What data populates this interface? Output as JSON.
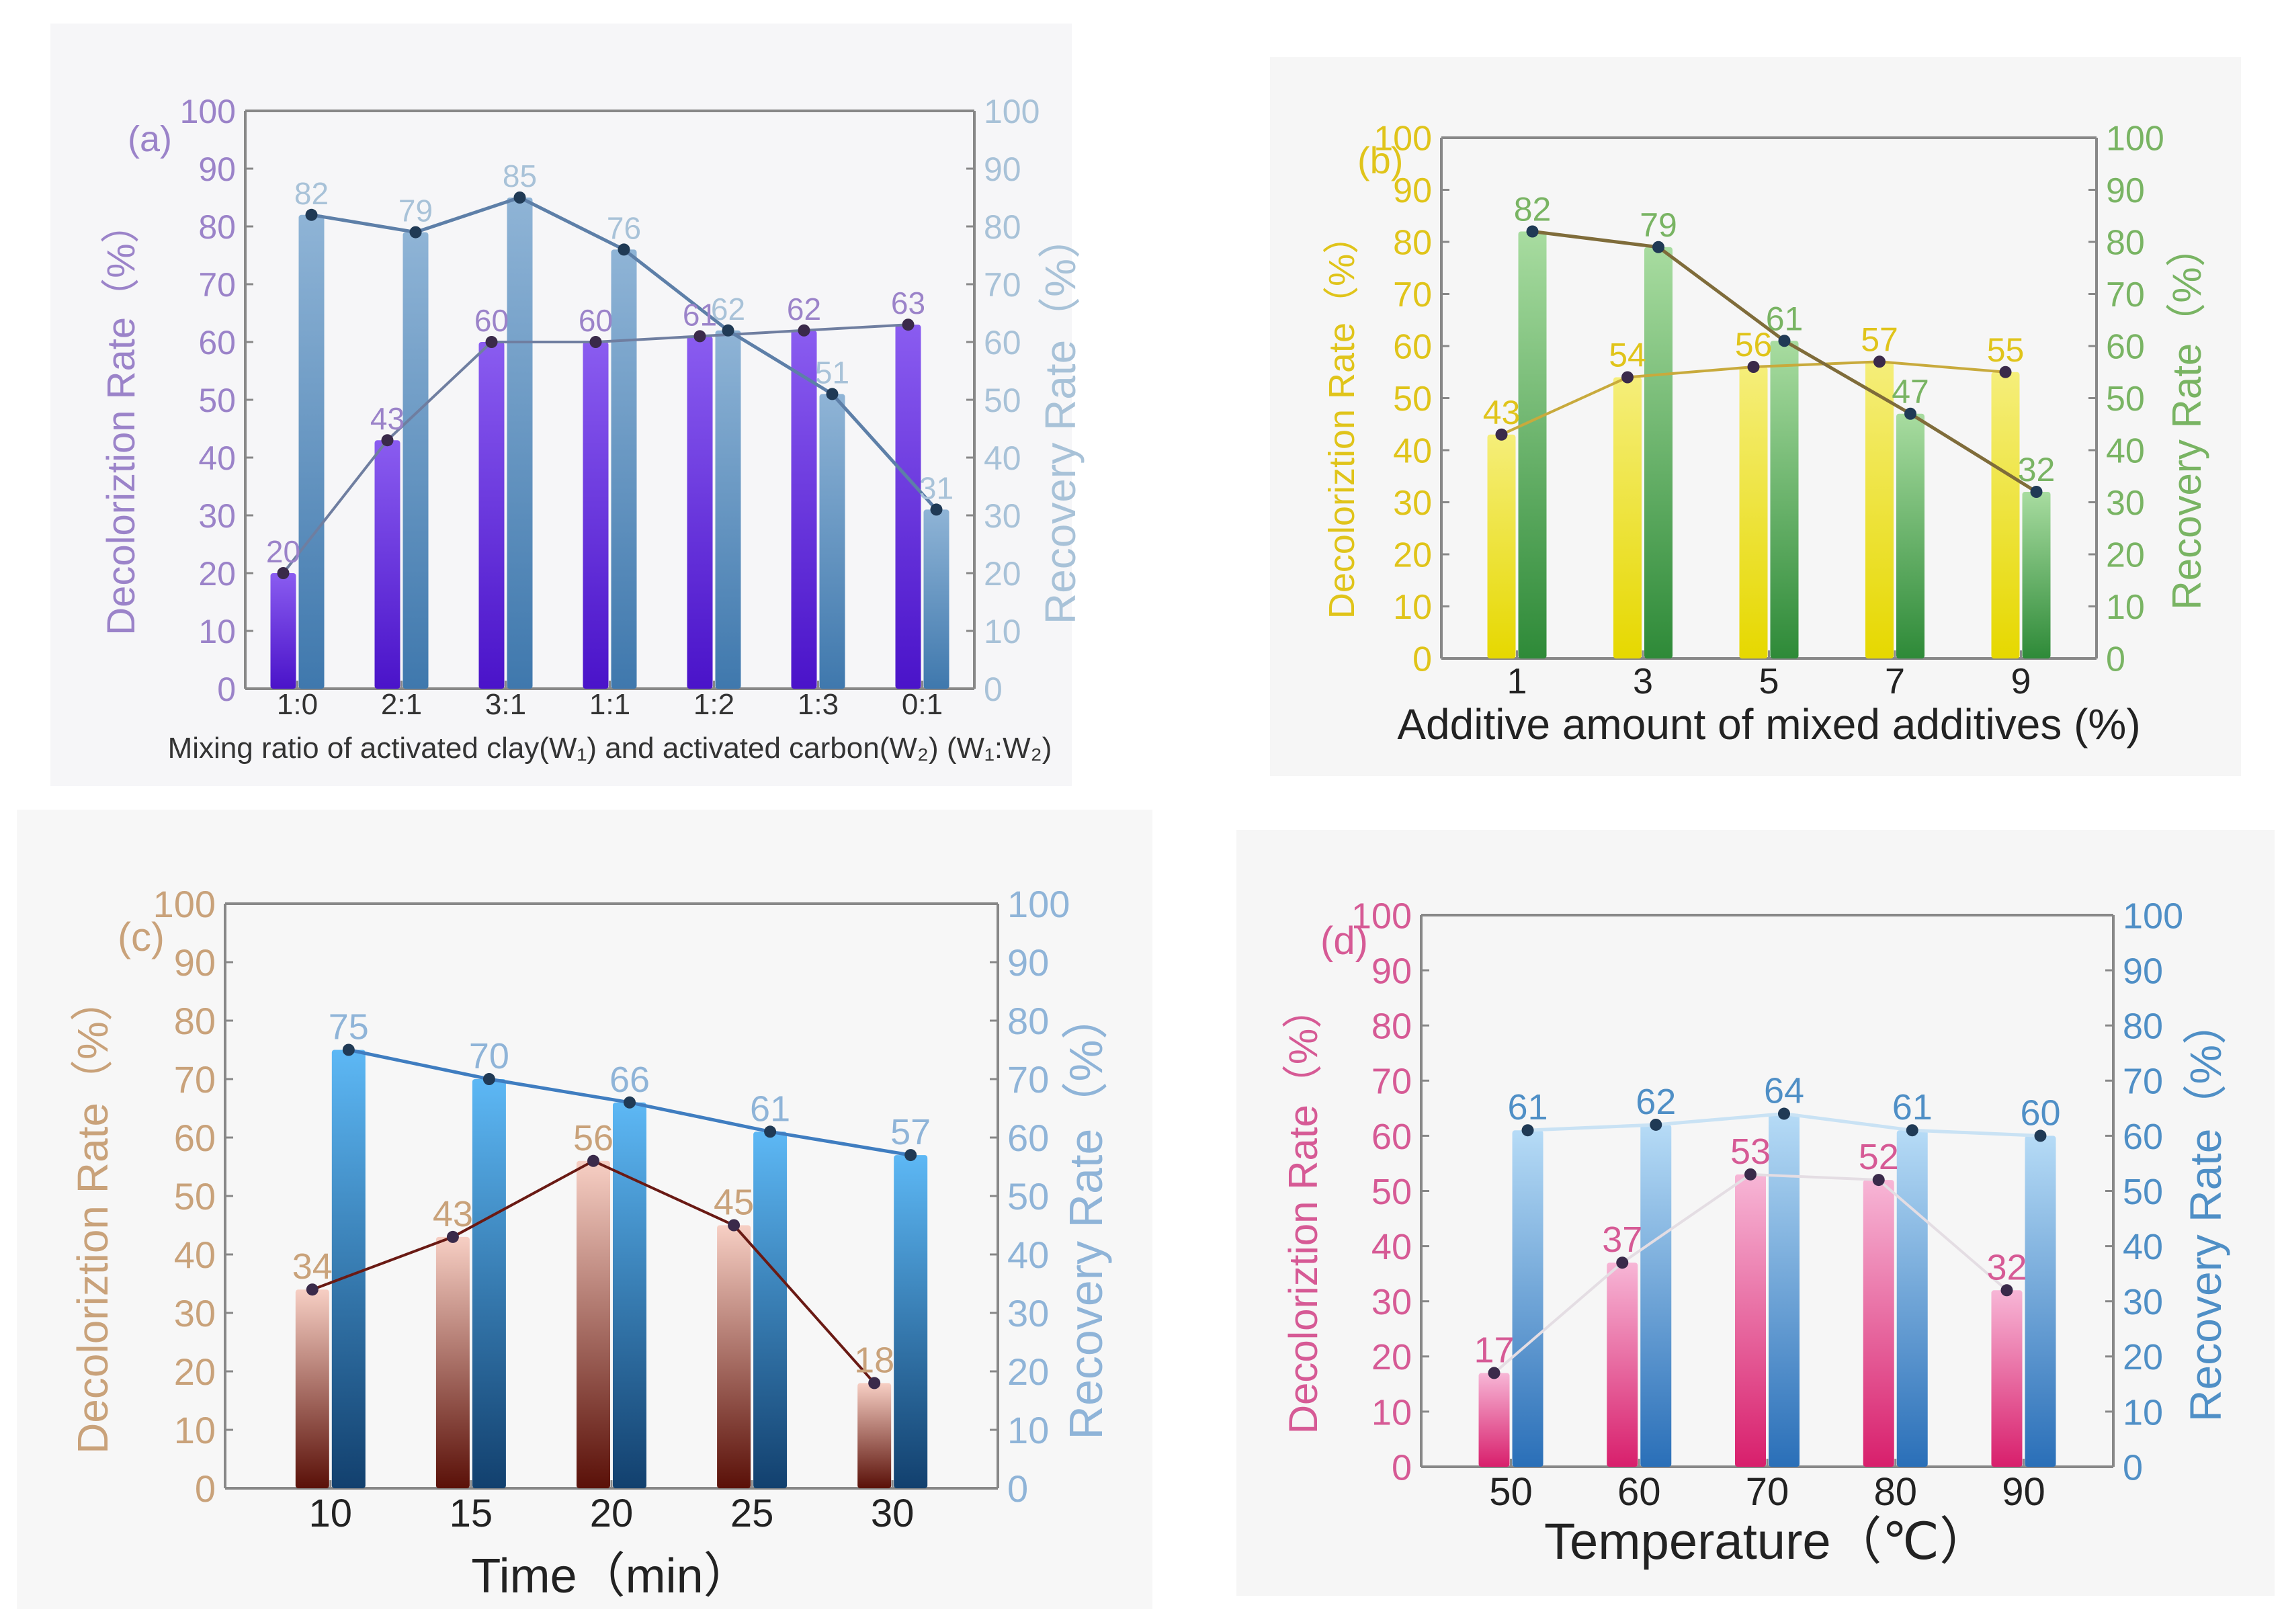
{
  "chart_data": [
    {
      "type": "bar",
      "panel_label": "(a)",
      "categories": [
        "1:0",
        "2:1",
        "3:1",
        "1:1",
        "1:2",
        "1:3",
        "0:1"
      ],
      "series": [
        {
          "name": "Decoloriztion Rate (%)",
          "axis": "left",
          "values": [
            20,
            43,
            60,
            60,
            61,
            62,
            63
          ],
          "labels": [
            "20",
            "43",
            "60",
            "60",
            "61",
            "62",
            "63"
          ]
        },
        {
          "name": "Recovery Rate (%)",
          "axis": "right",
          "values": [
            82,
            79,
            85,
            76,
            62,
            51,
            31
          ],
          "labels": [
            "82",
            "79",
            "85",
            "76",
            "62",
            "51",
            "31"
          ]
        }
      ],
      "xlabel": "Mixing ratio of activated clay(W₁) and activated carbon(W₂) (W₁:W₂)",
      "ylabel_left": "Decoloriztion Rate（%）",
      "ylabel_right": "Recovery Rate（%）",
      "ylim": [
        0,
        100
      ],
      "yticks": [
        "0",
        "10",
        "20",
        "30",
        "40",
        "50",
        "60",
        "70",
        "80",
        "90",
        "100"
      ],
      "colors": {
        "left": "#8a5cf0",
        "left_dark": "#4a13c9",
        "right": "#8fb4d6",
        "right_dark": "#3f78ad",
        "left_axis": "#9b83c9",
        "right_axis": "#a8c2d8",
        "line": "#5d7fa8",
        "left_line": "#6f7ea0",
        "bg": "#f6f6f8",
        "xlabel": "#333333"
      }
    },
    {
      "type": "bar",
      "panel_label": "(b)",
      "categories": [
        "1",
        "3",
        "5",
        "7",
        "9"
      ],
      "series": [
        {
          "name": "Decoloriztion Rate (%)",
          "axis": "left",
          "values": [
            43,
            54,
            56,
            57,
            55
          ],
          "labels": [
            "43",
            "54",
            "56",
            "57",
            "55"
          ]
        },
        {
          "name": "Recovery Rate (%)",
          "axis": "right",
          "values": [
            82,
            79,
            61,
            47,
            32
          ],
          "labels": [
            "82",
            "79",
            "61",
            "47",
            "32"
          ]
        }
      ],
      "xlabel": "Additive amount of mixed additives (%)",
      "ylabel_left": "Decoloriztion Rate（%）",
      "ylabel_right": "Recovery Rate（%）",
      "ylim": [
        0,
        100
      ],
      "yticks": [
        "0",
        "10",
        "20",
        "30",
        "40",
        "50",
        "60",
        "70",
        "80",
        "90",
        "100"
      ],
      "colors": {
        "left": "#f5ee7a",
        "left_dark": "#e6d800",
        "right": "#a8dca0",
        "right_dark": "#2e8a38",
        "left_axis": "#e0c41a",
        "right_axis": "#79b463",
        "line": "#7f6c3a",
        "left_line": "#c8aa3c",
        "bg": "#f6f6f6",
        "xlabel": "#222222"
      }
    },
    {
      "type": "bar",
      "panel_label": "(c)",
      "categories": [
        "10",
        "15",
        "20",
        "25",
        "30"
      ],
      "series": [
        {
          "name": "Decoloriztion Rate (%)",
          "axis": "left",
          "values": [
            34,
            43,
            56,
            45,
            18
          ],
          "labels": [
            "34",
            "43",
            "56",
            "45",
            "18"
          ]
        },
        {
          "name": "Recovery Rate (%)",
          "axis": "right",
          "values": [
            75,
            70,
            66,
            61,
            57
          ],
          "labels": [
            "75",
            "70",
            "66",
            "61",
            "57"
          ]
        }
      ],
      "xlabel": "Time（min）",
      "ylabel_left": "Decoloriztion Rate（%）",
      "ylabel_right": "Recovery Rate（%）",
      "ylim": [
        0,
        100
      ],
      "yticks": [
        "0",
        "10",
        "20",
        "30",
        "40",
        "50",
        "60",
        "70",
        "80",
        "90",
        "100"
      ],
      "colors": {
        "left": "#f7cfc4",
        "left_dark": "#5a1008",
        "right": "#5db8f5",
        "right_dark": "#12406e",
        "left_axis": "#c9a27a",
        "right_axis": "#8fb4d8",
        "line": "#3f7dc0",
        "left_line": "#6a1a14",
        "bg": "#f7f7f7",
        "xlabel": "#222222"
      }
    },
    {
      "type": "bar",
      "panel_label": "(d)",
      "categories": [
        "50",
        "60",
        "70",
        "80",
        "90"
      ],
      "series": [
        {
          "name": "Decoloriztion Rate (%)",
          "axis": "left",
          "values": [
            17,
            37,
            53,
            52,
            32
          ],
          "labels": [
            "17",
            "37",
            "53",
            "52",
            "32"
          ]
        },
        {
          "name": "Recovery Rate (%)",
          "axis": "right",
          "values": [
            61,
            62,
            64,
            61,
            60
          ],
          "labels": [
            "61",
            "62",
            "64",
            "61",
            "60"
          ]
        }
      ],
      "xlabel": "Temperature（℃）",
      "ylabel_left": "Decoloriztion Rate（%）",
      "ylabel_right": "Recovery Rate（%）",
      "ylim": [
        0,
        100
      ],
      "yticks": [
        "0",
        "10",
        "20",
        "30",
        "40",
        "50",
        "60",
        "70",
        "80",
        "90",
        "100"
      ],
      "colors": {
        "left": "#f7b6d6",
        "left_dark": "#d81f6c",
        "right": "#b6dbf6",
        "right_dark": "#2a6fb8",
        "left_axis": "#d65a95",
        "right_axis": "#4f8fc6",
        "line": "#c9e2f4",
        "left_line": "#e4dde3",
        "bg": "#f6f6f6",
        "xlabel": "#222222"
      }
    }
  ]
}
